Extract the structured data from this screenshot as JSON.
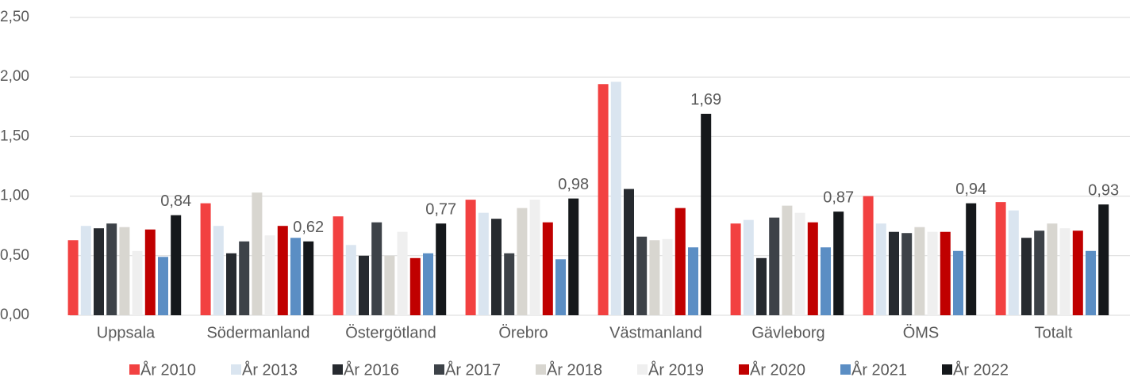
{
  "chart_data": {
    "type": "bar",
    "categories": [
      "Uppsala",
      "Södermanland",
      "Östergötland",
      "Örebro",
      "Västmanland",
      "Gävleborg",
      "ÖMS",
      "Totalt"
    ],
    "series": [
      {
        "name": "År 2010",
        "color": "#f24141",
        "values": [
          0.63,
          0.94,
          0.83,
          0.97,
          1.94,
          0.77,
          1.0,
          0.95
        ]
      },
      {
        "name": "År 2013",
        "color": "#dae5f0",
        "values": [
          0.75,
          0.75,
          0.59,
          0.86,
          1.96,
          0.8,
          0.77,
          0.88
        ]
      },
      {
        "name": "År 2016",
        "color": "#262a2f",
        "values": [
          0.73,
          0.52,
          0.5,
          0.81,
          1.06,
          0.48,
          0.7,
          0.65
        ]
      },
      {
        "name": "År 2017",
        "color": "#3d4248",
        "values": [
          0.77,
          0.62,
          0.78,
          0.52,
          0.66,
          0.82,
          0.69,
          0.71
        ]
      },
      {
        "name": "År 2018",
        "color": "#d8d6d0",
        "values": [
          0.74,
          1.03,
          0.5,
          0.9,
          0.63,
          0.92,
          0.74,
          0.77
        ]
      },
      {
        "name": "År 2019",
        "color": "#efefef",
        "values": [
          0.54,
          0.67,
          0.7,
          0.97,
          0.64,
          0.86,
          0.7,
          0.73
        ]
      },
      {
        "name": "År 2020",
        "color": "#c00000",
        "values": [
          0.72,
          0.75,
          0.48,
          0.78,
          0.9,
          0.78,
          0.7,
          0.71
        ]
      },
      {
        "name": "År 2021",
        "color": "#5b8ec4",
        "values": [
          0.49,
          0.65,
          0.52,
          0.47,
          0.57,
          0.57,
          0.54,
          0.54
        ]
      },
      {
        "name": "År 2022",
        "color": "#15181b",
        "values": [
          0.84,
          0.62,
          0.77,
          0.98,
          1.69,
          0.87,
          0.94,
          0.93
        ],
        "value_labels": [
          "0,84",
          "0,62",
          "0,77",
          "0,98",
          "1,69",
          "0,87",
          "0,94",
          "0,93"
        ]
      }
    ],
    "ylim": [
      0,
      2.5
    ],
    "yticks": [
      {
        "value": 0,
        "label": "0,00"
      },
      {
        "value": 0.5,
        "label": "0,50"
      },
      {
        "value": 1,
        "label": "1,00"
      },
      {
        "value": 1.5,
        "label": "1,50"
      },
      {
        "value": 2,
        "label": "2,00"
      },
      {
        "value": 2.5,
        "label": "2,50"
      }
    ],
    "grid": true,
    "legend": "bottom"
  }
}
